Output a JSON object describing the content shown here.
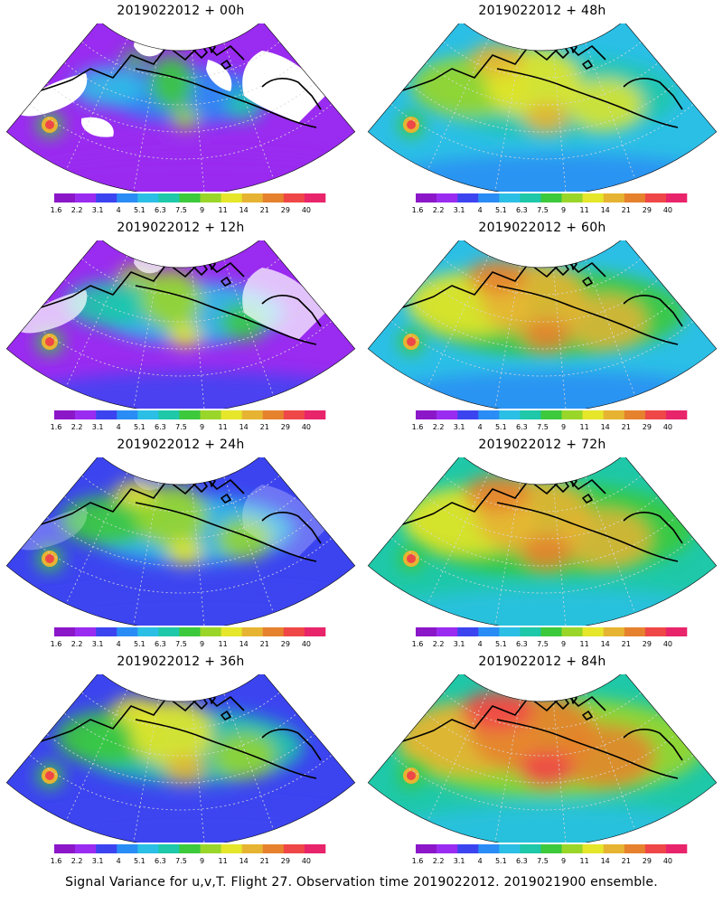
{
  "panels": [
    {
      "title": "2019022012 + 00h",
      "intensity": 0.0
    },
    {
      "title": "2019022012 + 48h",
      "intensity": 0.62
    },
    {
      "title": "2019022012 + 12h",
      "intensity": 0.18
    },
    {
      "title": "2019022012 + 60h",
      "intensity": 0.74
    },
    {
      "title": "2019022012 + 24h",
      "intensity": 0.32
    },
    {
      "title": "2019022012 + 72h",
      "intensity": 0.86
    },
    {
      "title": "2019022012 + 36h",
      "intensity": 0.45
    },
    {
      "title": "2019022012 + 84h",
      "intensity": 1.0
    }
  ],
  "colorbar": {
    "labels": [
      "1.6",
      "2.2",
      "3.1",
      "4",
      "5.1",
      "6.3",
      "7.5",
      "9",
      "11",
      "14",
      "21",
      "29",
      "40"
    ],
    "colors": [
      "#8b17c9",
      "#9a2bf0",
      "#3c44f0",
      "#2a8cf5",
      "#2bbfe6",
      "#1ec8a8",
      "#3cc93c",
      "#9ad629",
      "#e6e62a",
      "#e6b432",
      "#e6822d",
      "#ef4747",
      "#e8246b"
    ]
  },
  "caption": "Signal Variance for u,v,T. Flight 27. Observation time 2019022012. 2019021900 ensemble."
}
